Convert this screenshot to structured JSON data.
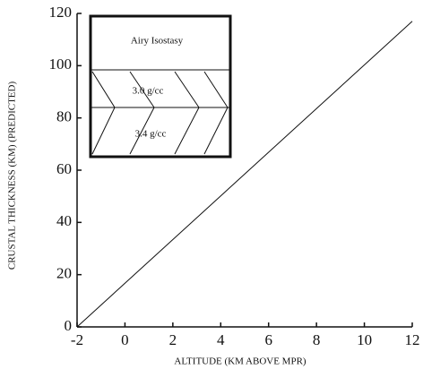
{
  "chart_data": {
    "type": "line",
    "x_label": "ALTITUDE (KM ABOVE MPR)",
    "y_label": "CRUSTAL THICKNESS (KM) (PREDICTED)",
    "x": [
      -2,
      12
    ],
    "values": [
      0,
      117
    ],
    "color": "#111111",
    "xlim": [
      -2,
      12
    ],
    "xticks": [
      -2,
      0,
      2,
      4,
      6,
      8,
      10,
      12
    ],
    "ylim": [
      0,
      120
    ],
    "yticks": [
      0,
      20,
      40,
      60,
      80,
      100,
      120
    ],
    "annotations": [
      "Airy Isostasy",
      "3.0 g/cc",
      "3.4 g/cc"
    ]
  }
}
